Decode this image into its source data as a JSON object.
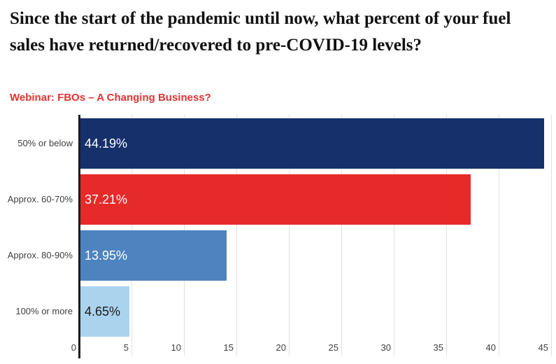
{
  "title": "Since the start of the pandemic until now, what percent of your fuel sales have returned/recovered to pre-COVID-19 levels?",
  "subtitle": "Webinar: FBOs – A Changing Business?",
  "colors": {
    "title_text": "#111111",
    "subtitle_text": "#E23333",
    "axis_line": "#1c1c1c",
    "gridline": "#e0e0e0",
    "tick_text": "#3f3f3f",
    "background": "#ffffff"
  },
  "chart_data": {
    "type": "bar",
    "orientation": "horizontal",
    "title": "Since the start of the pandemic until now, what percent of your fuel sales have returned/recovered to pre-COVID-19 levels?",
    "subtitle": "Webinar: FBOs – A Changing Business?",
    "categories": [
      "50% or below",
      "Approx. 60-70%",
      "Approx. 80-90%",
      "100% or more"
    ],
    "values": [
      44.19,
      37.21,
      13.95,
      4.65
    ],
    "value_labels": [
      "44.19%",
      "37.21%",
      "13.95%",
      "4.65%"
    ],
    "bar_colors": [
      "#16306C",
      "#E62929",
      "#4D83BF",
      "#AAD3EE"
    ],
    "value_label_colors": [
      "#ffffff",
      "#ffffff",
      "#ffffff",
      "#1a1a1a"
    ],
    "x_ticks": [
      0,
      5,
      10,
      15,
      20,
      25,
      30,
      35,
      40,
      45
    ],
    "xlabel": "",
    "ylabel": "",
    "xlim": [
      0,
      45.5
    ],
    "grid": true,
    "legend": "none"
  }
}
